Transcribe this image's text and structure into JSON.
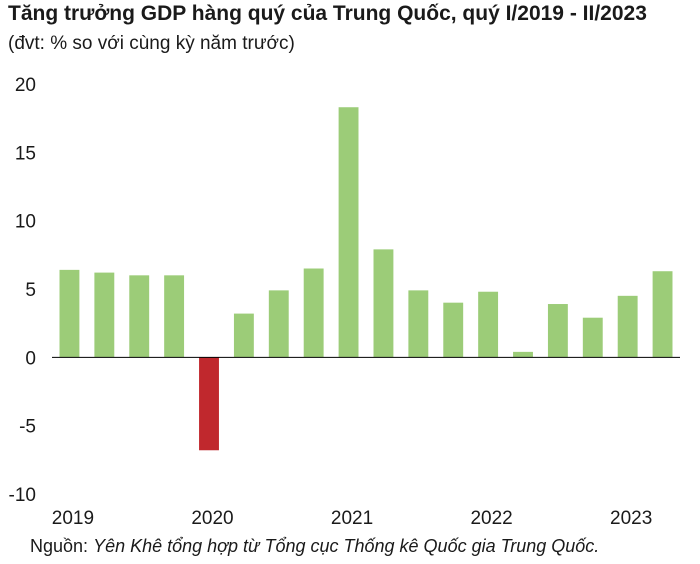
{
  "title": "Tăng trưởng GDP hàng quý của Trung Quốc, quý I/2019 - II/2023",
  "subtitle": "(đvt: % so với cùng kỳ năm trước)",
  "source": {
    "label": "Nguồn:",
    "text": "Yên Khê tổng hợp từ Tổng cục Thống kê Quốc gia Trung Quốc."
  },
  "colors": {
    "positive": "#9ccc78",
    "negative": "#c0282d",
    "axis": "#000000"
  },
  "chart_data": {
    "type": "bar",
    "categories": [
      "Q1 2019",
      "Q2 2019",
      "Q3 2019",
      "Q4 2019",
      "Q1 2020",
      "Q2 2020",
      "Q3 2020",
      "Q4 2020",
      "Q1 2021",
      "Q2 2021",
      "Q3 2021",
      "Q4 2021",
      "Q1 2022",
      "Q2 2022",
      "Q3 2022",
      "Q4 2022",
      "Q1 2023",
      "Q2 2023"
    ],
    "values": [
      6.4,
      6.2,
      6.0,
      6.0,
      -6.8,
      3.2,
      4.9,
      6.5,
      18.3,
      7.9,
      4.9,
      4.0,
      4.8,
      0.4,
      3.9,
      2.9,
      4.5,
      6.3
    ],
    "x_tick_labels": [
      "2019",
      "2020",
      "2021",
      "2022",
      "2023"
    ],
    "y_ticks": [
      "20",
      "15",
      "10",
      "5",
      "0",
      "-5",
      "-10"
    ],
    "ylim": [
      -10,
      20
    ],
    "grid": false,
    "legend": "none"
  }
}
